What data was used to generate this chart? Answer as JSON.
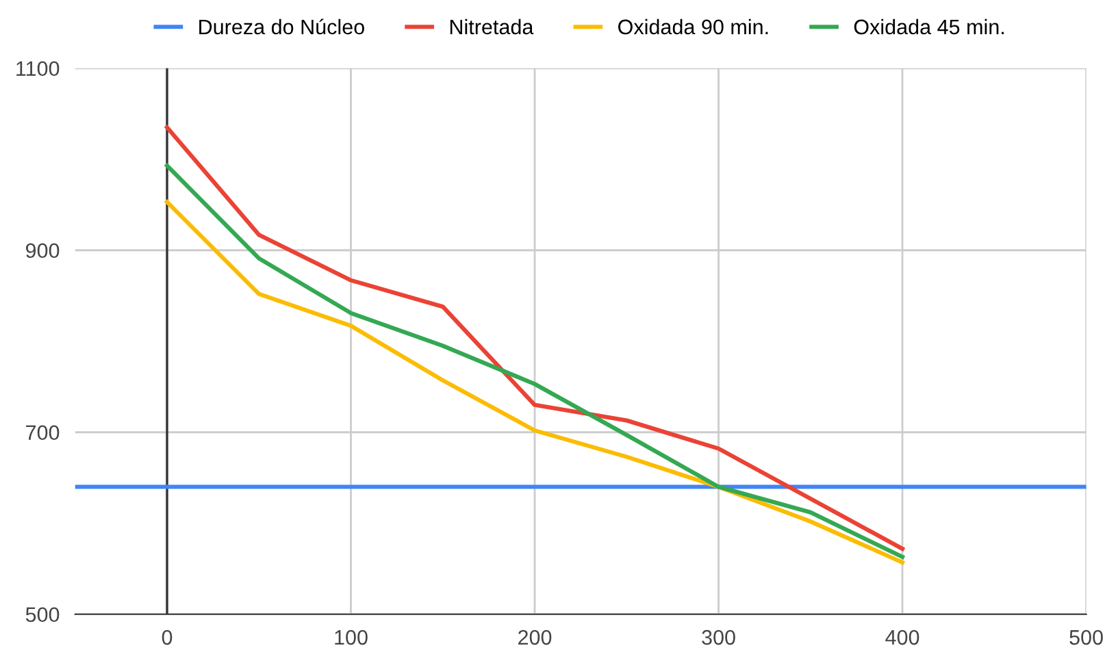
{
  "chart_data": {
    "type": "line",
    "series": [
      {
        "name": "Dureza do Núcleo",
        "color": "#4285f4",
        "x": [
          -50,
          500
        ],
        "values": [
          640,
          640
        ]
      },
      {
        "name": "Nitretada",
        "color": "#ea4335",
        "x": [
          0,
          50,
          100,
          150,
          200,
          250,
          300,
          400
        ],
        "values": [
          1035,
          917,
          867,
          838,
          730,
          713,
          682,
          572
        ]
      },
      {
        "name": "Oxidada 90 min.",
        "color": "#fbbc04",
        "x": [
          0,
          50,
          100,
          150,
          200,
          250,
          300,
          350,
          400
        ],
        "values": [
          953,
          852,
          817,
          757,
          702,
          673,
          640,
          602,
          557
        ]
      },
      {
        "name": "Oxidada 45 min.",
        "color": "#34a853",
        "x": [
          0,
          50,
          100,
          150,
          200,
          250,
          300,
          350,
          400
        ],
        "values": [
          993,
          891,
          831,
          795,
          753,
          697,
          640,
          612,
          563
        ]
      }
    ],
    "xlim": [
      -50,
      500
    ],
    "xticks": [
      0,
      100,
      200,
      300,
      400,
      500
    ],
    "ylim": [
      500,
      1100
    ],
    "yticks": [
      500,
      700,
      900,
      1100
    ],
    "grid": true,
    "legend": "top",
    "marker": "none",
    "line_style": "solid"
  }
}
